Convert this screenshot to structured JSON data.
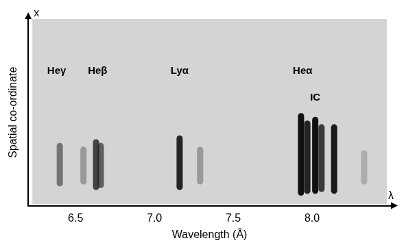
{
  "chart_data": {
    "type": "scatter",
    "xlabel": "Wavelength (Å)",
    "ylabel": "Spatial co-ordinate",
    "xsymbol": "λ",
    "ysymbol": "x",
    "xlim": [
      6.2,
      8.5
    ],
    "xticks": [
      6.5,
      {
        "value": 7,
        "label": "7.0"
      },
      7.5,
      {
        "value": 8,
        "label": "8.0"
      }
    ],
    "ylim": [
      0,
      1
    ],
    "yticks": [],
    "tick_labels": "x",
    "grid": false,
    "color": "#111111",
    "features": [
      {
        "wavelength": 6.4,
        "spatial_range": [
          0.12,
          0.32
        ],
        "intensity": 0.5
      },
      {
        "wavelength": 6.55,
        "spatial_range": [
          0.13,
          0.3
        ],
        "intensity": 0.3
      },
      {
        "wavelength": 6.63,
        "spatial_range": [
          0.1,
          0.34
        ],
        "intensity": 0.75
      },
      {
        "wavelength": 6.66,
        "spatial_range": [
          0.11,
          0.32
        ],
        "intensity": 0.6
      },
      {
        "wavelength": 7.16,
        "spatial_range": [
          0.1,
          0.36
        ],
        "intensity": 0.9
      },
      {
        "wavelength": 7.29,
        "spatial_range": [
          0.13,
          0.3
        ],
        "intensity": 0.3
      },
      {
        "wavelength": 7.93,
        "spatial_range": [
          0.07,
          0.48
        ],
        "intensity": 1.0
      },
      {
        "wavelength": 7.97,
        "spatial_range": [
          0.08,
          0.44
        ],
        "intensity": 0.9
      },
      {
        "wavelength": 8.02,
        "spatial_range": [
          0.08,
          0.46
        ],
        "intensity": 1.0
      },
      {
        "wavelength": 8.06,
        "spatial_range": [
          0.09,
          0.42
        ],
        "intensity": 0.8
      },
      {
        "wavelength": 8.14,
        "spatial_range": [
          0.08,
          0.42
        ],
        "intensity": 0.95
      },
      {
        "wavelength": 8.33,
        "spatial_range": [
          0.13,
          0.28
        ],
        "intensity": 0.2
      }
    ],
    "annotations": [
      {
        "text": "Heγ",
        "x": 6.38,
        "y": 0.72
      },
      {
        "text": "Heβ",
        "x": 6.64,
        "y": 0.72
      },
      {
        "text": "Lyα",
        "x": 7.16,
        "y": 0.72
      },
      {
        "text": "Heα",
        "x": 7.94,
        "y": 0.72
      },
      {
        "text": "IC",
        "x": 8.02,
        "y": 0.58
      }
    ]
  }
}
